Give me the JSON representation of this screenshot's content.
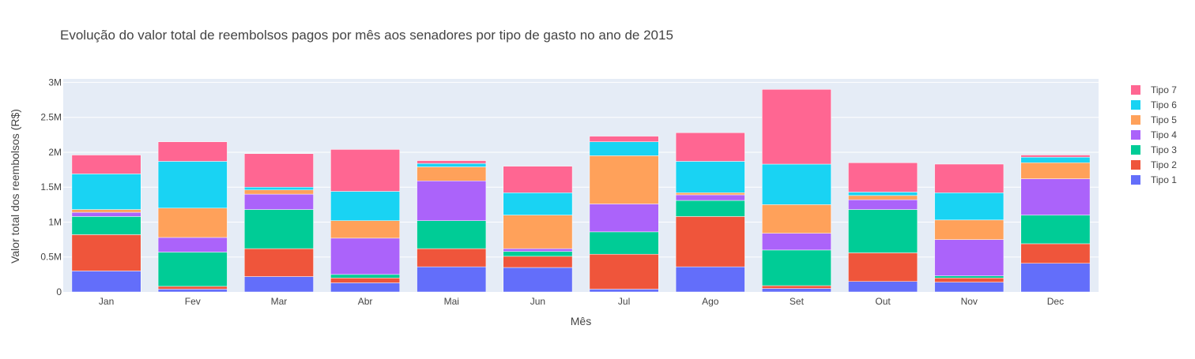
{
  "chart_data": {
    "type": "bar",
    "barmode": "stack",
    "title": "Evolução do valor total de reembolsos pagos por mês aos senadores por tipo de gasto no ano de 2015",
    "xlabel": "Mês",
    "ylabel": "Valor total dos reembolsos (R$)",
    "categories": [
      "Jan",
      "Fev",
      "Mar",
      "Abr",
      "Mai",
      "Jun",
      "Jul",
      "Ago",
      "Set",
      "Out",
      "Nov",
      "Dec"
    ],
    "ylim": [
      0,
      3050000
    ],
    "yticks": [
      0,
      500000,
      1000000,
      1500000,
      2000000,
      2500000,
      3000000
    ],
    "ytick_labels": [
      "0",
      "0.5M",
      "1M",
      "1.5M",
      "2M",
      "2.5M",
      "3M"
    ],
    "grid": true,
    "legend_position": "right",
    "plot_background": "#E5ECF6",
    "series": [
      {
        "name": "Tipo 1",
        "color": "#636EFA",
        "values": [
          300000,
          40000,
          220000,
          130000,
          360000,
          350000,
          40000,
          360000,
          50000,
          150000,
          140000,
          410000
        ]
      },
      {
        "name": "Tipo 2",
        "color": "#EF553B",
        "values": [
          520000,
          40000,
          400000,
          70000,
          260000,
          160000,
          500000,
          720000,
          40000,
          410000,
          60000,
          280000
        ]
      },
      {
        "name": "Tipo 3",
        "color": "#00CC96",
        "values": [
          260000,
          490000,
          560000,
          50000,
          400000,
          70000,
          320000,
          230000,
          510000,
          620000,
          30000,
          410000
        ]
      },
      {
        "name": "Tipo 4",
        "color": "#AB63FA",
        "values": [
          60000,
          210000,
          220000,
          520000,
          570000,
          40000,
          400000,
          80000,
          240000,
          140000,
          520000,
          520000
        ]
      },
      {
        "name": "Tipo 5",
        "color": "#FFA15A",
        "values": [
          40000,
          420000,
          60000,
          250000,
          200000,
          480000,
          690000,
          30000,
          410000,
          60000,
          280000,
          230000
        ]
      },
      {
        "name": "Tipo 6",
        "color": "#19D3F3",
        "values": [
          510000,
          670000,
          40000,
          420000,
          50000,
          320000,
          200000,
          450000,
          580000,
          50000,
          390000,
          80000
        ]
      },
      {
        "name": "Tipo 7",
        "color": "#FF6692",
        "values": [
          270000,
          280000,
          480000,
          600000,
          40000,
          380000,
          80000,
          410000,
          1070000,
          420000,
          410000,
          30000
        ]
      }
    ]
  }
}
